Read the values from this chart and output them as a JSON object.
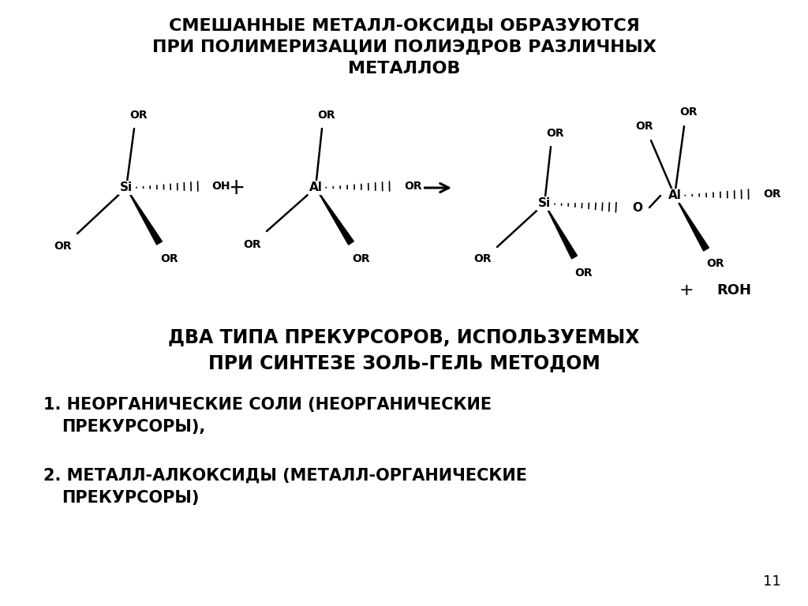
{
  "title_line1": "СМЕШАННЫЕ МЕТАЛЛ-ОКСИДЫ ОБРАЗУЮТСЯ",
  "title_line2": "ПРИ ПОЛИМЕРИЗАЦИИ ПОЛИЭДРОВ РАЗЛИЧНЫХ",
  "title_line3": "МЕТАЛЛОВ",
  "subtitle_line1": "ДВА ТИПА ПРЕКУРСОРОВ, ИСПОЛЬЗУЕМЫХ",
  "subtitle_line2": "ПРИ СИНТЕЗЕ ЗОЛЬ-ГЕЛЬ МЕТОДОМ",
  "item1a": "1. НЕОРГАНИЧЕСКИЕ СОЛИ (НЕОРГАНИЧЕСКИЕ",
  "item1b": "    ПРЕКУРСОРЫ),",
  "item2a": "2. МЕТАЛЛ-АЛКОКСИДЫ (МЕТАЛЛ-ОРГАНИЧЕСКИЕ",
  "item2b": "    ПРЕКУРСОРЫ)",
  "page_number": "11",
  "bg_color": "#ffffff",
  "text_color": "#000000",
  "title_fontsize": 16,
  "subtitle_fontsize": 17,
  "body_fontsize": 15,
  "mol_label_fontsize": 11,
  "mol_or_fontsize": 10
}
